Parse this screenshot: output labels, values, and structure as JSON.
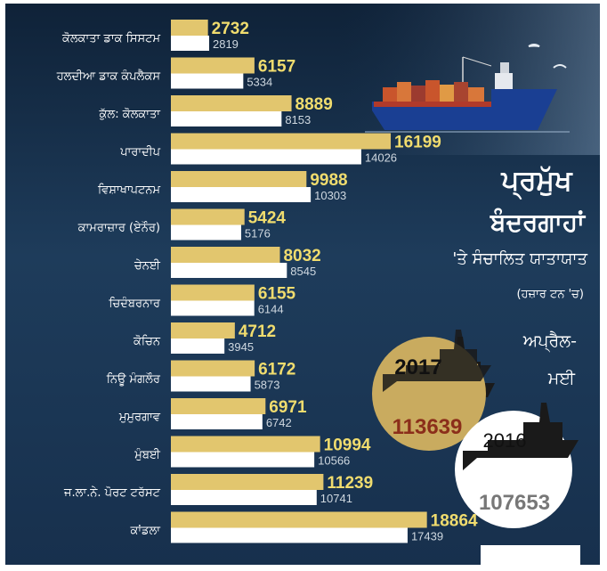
{
  "title_lines": [
    "ਪ੍ਰਮੁੱਖ",
    "ਬੰਦਰਗਾਹਾਂ"
  ],
  "subtitle": "'ਤੇ ਸੰਚਾਲਿਤ ਯਾਤਾਯਾਤ",
  "unit": "(ਹਜ਼ਾਰ ਟਨ 'ਚ)",
  "period_lines": [
    "ਅਪ੍ਰੈਲ-",
    "ਮਈ"
  ],
  "totals": [
    {
      "year": "2017",
      "value": "113639"
    },
    {
      "year": "2016",
      "value": "107653"
    }
  ],
  "colors": {
    "background": "#1f3d5c",
    "bar_2017": "#e2c66e",
    "bar_2016": "#ffffff",
    "value_2017": "#f0dc6e",
    "value_2016": "#cfd8e0",
    "label": "#ffffff",
    "total_2017_circle": "#c9ab5f",
    "total_2017_text": "#8b2e1a",
    "total_2016_circle": "#ffffff",
    "total_2016_text": "#777777"
  },
  "chart_data": {
    "type": "bar",
    "orientation": "horizontal",
    "categories": [
      "ਕੋਲਕਾਤਾ ਡਾਕ ਸਿਸਟਮ",
      "ਹਲਦੀਆ ਡਾਕ ਕੰਪਲੈਕਸ",
      "ਕੁੱਲ: ਕੋਲਕਾਤਾ",
      "ਪਾਰਾਦੀਪ",
      "ਵਿਸ਼ਾਖਾਪਟਨਮ",
      "ਕਾਮਰਾਜ਼ਾਰ (ਏਨੌਰ)",
      "ਚੇਨਈ",
      "ਚਿਦੰਬਰਨਾਰ",
      "ਕੋਚਿਨ",
      "ਨਿਊ ਮੰਗਲੌਰ",
      "ਮੁਮੁਰਗਾਵ",
      "ਮੁੰਬਈ",
      "ਜ.ਲਾ.ਨੇ. ਪੋਰਟ ਟਰੱਸਟ",
      "ਕਾਂਡਲਾ"
    ],
    "series": [
      {
        "values": [
          2732,
          6157,
          8889,
          16199,
          9988,
          5424,
          8032,
          6155,
          4712,
          6172,
          6971,
          10994,
          11239,
          18864
        ]
      },
      {
        "values": [
          2819,
          5334,
          8153,
          14026,
          10303,
          5176,
          8545,
          6144,
          3945,
          5873,
          6742,
          10566,
          10741,
          17439
        ]
      }
    ],
    "xlim": [
      0,
      20000
    ],
    "grid": false,
    "legend": "none"
  }
}
